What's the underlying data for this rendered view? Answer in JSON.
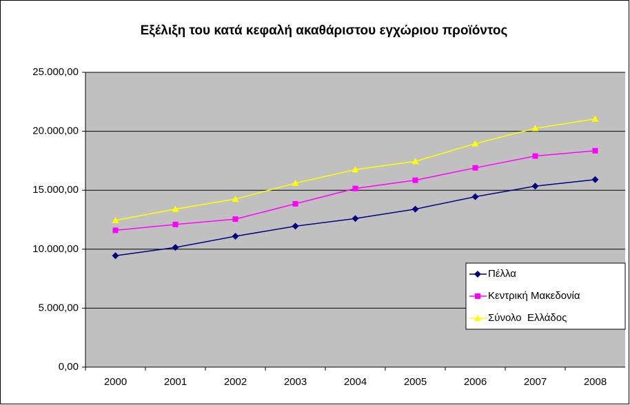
{
  "chart_data": {
    "type": "line",
    "title": "Εξέλιξη του κατά κεφαλή ακαθάριστου εγχώριου προϊόντος",
    "categories": [
      "2000",
      "2001",
      "2002",
      "2003",
      "2004",
      "2005",
      "2006",
      "2007",
      "2008"
    ],
    "series": [
      {
        "name": "Πέλλα",
        "color": "#000080",
        "marker": "diamond",
        "values": [
          9450,
          10150,
          11100,
          11950,
          12600,
          13400,
          14450,
          15350,
          15900
        ]
      },
      {
        "name": "Κεντρική Μακεδονία",
        "color": "#ff00ff",
        "marker": "square",
        "values": [
          11600,
          12100,
          12550,
          13850,
          15150,
          15850,
          16900,
          17900,
          18350
        ]
      },
      {
        "name": "Σύνολο  Ελλάδος",
        "color": "#ffff00",
        "marker": "triangle",
        "values": [
          12450,
          13400,
          14250,
          15600,
          16750,
          17450,
          18950,
          20250,
          21050
        ]
      }
    ],
    "ylim": [
      0,
      25000
    ],
    "yticks": [
      {
        "value": 0,
        "label": "0,00"
      },
      {
        "value": 5000,
        "label": "5.000,00"
      },
      {
        "value": 10000,
        "label": "10.000,00"
      },
      {
        "value": 15000,
        "label": "15.000,00"
      },
      {
        "value": 20000,
        "label": "20.000,00"
      },
      {
        "value": 25000,
        "label": "25.000,00"
      }
    ],
    "grid": true,
    "legend": "lower right"
  }
}
